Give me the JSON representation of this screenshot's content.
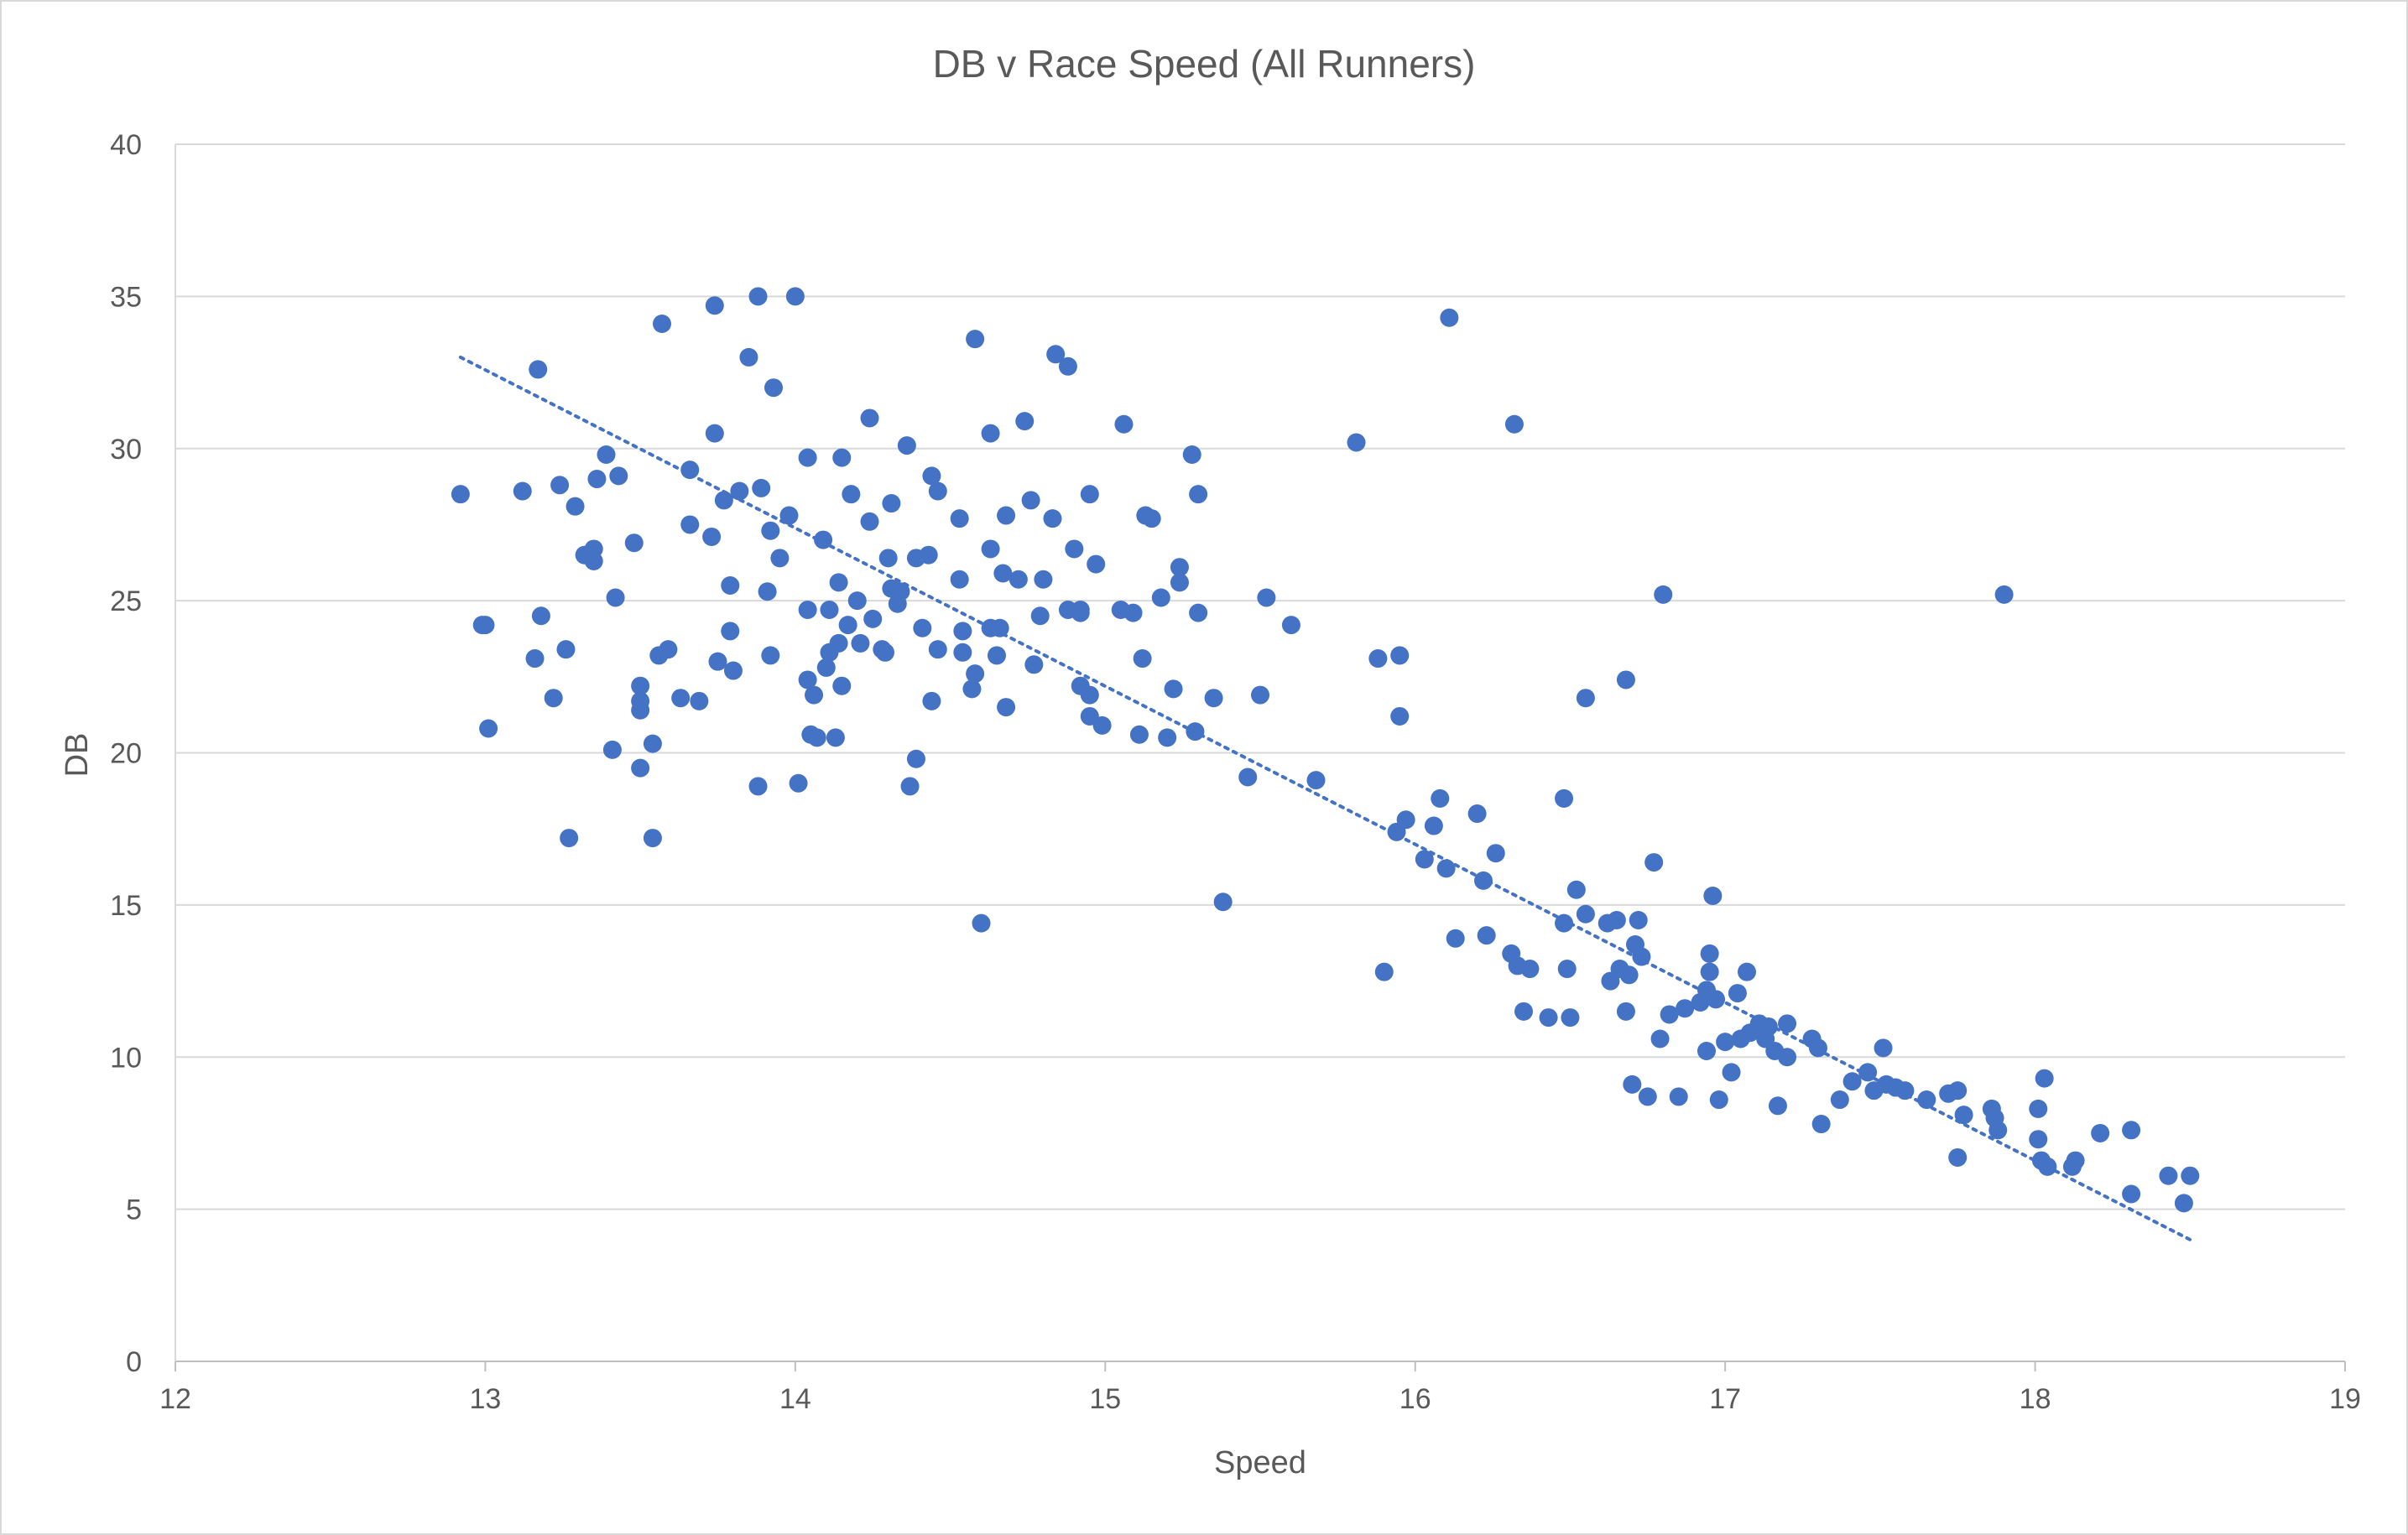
{
  "chart_data": {
    "type": "scatter",
    "title": "DB v Race Speed (All Runners)",
    "xlabel": "Speed",
    "ylabel": "DB",
    "xlim": [
      12,
      19
    ],
    "ylim": [
      0,
      40
    ],
    "x_ticks": [
      "12",
      "13",
      "14",
      "15",
      "16",
      "17",
      "18",
      "19"
    ],
    "y_ticks": [
      "0",
      "5",
      "10",
      "15",
      "20",
      "25",
      "30",
      "35",
      "40"
    ],
    "grid": "horizontal",
    "legend": "none",
    "marker_color": "#4472C4",
    "trendline": {
      "type": "linear",
      "style": "dotted",
      "color": "#4472C4",
      "x": [
        12.92,
        18.5
      ],
      "y": [
        33.0,
        4.0
      ]
    },
    "points": [
      [
        12.92,
        28.5
      ],
      [
        12.99,
        24.2
      ],
      [
        13.0,
        24.2
      ],
      [
        13.01,
        20.8
      ],
      [
        13.12,
        28.6
      ],
      [
        13.16,
        23.1
      ],
      [
        13.17,
        32.6
      ],
      [
        13.18,
        24.5
      ],
      [
        13.22,
        21.8
      ],
      [
        13.24,
        28.8
      ],
      [
        13.26,
        23.4
      ],
      [
        13.27,
        17.2
      ],
      [
        13.29,
        28.1
      ],
      [
        13.32,
        26.5
      ],
      [
        13.35,
        26.7
      ],
      [
        13.35,
        26.3
      ],
      [
        13.36,
        29.0
      ],
      [
        13.39,
        29.8
      ],
      [
        13.41,
        20.1
      ],
      [
        13.42,
        25.1
      ],
      [
        13.43,
        29.1
      ],
      [
        13.48,
        26.9
      ],
      [
        13.5,
        22.2
      ],
      [
        13.5,
        21.7
      ],
      [
        13.5,
        21.4
      ],
      [
        13.5,
        19.5
      ],
      [
        13.54,
        17.2
      ],
      [
        13.54,
        20.3
      ],
      [
        13.56,
        23.2
      ],
      [
        13.57,
        34.1
      ],
      [
        13.59,
        23.4
      ],
      [
        13.63,
        21.8
      ],
      [
        13.66,
        29.3
      ],
      [
        13.66,
        27.5
      ],
      [
        13.69,
        21.7
      ],
      [
        13.73,
        27.1
      ],
      [
        13.74,
        34.7
      ],
      [
        13.74,
        30.5
      ],
      [
        13.75,
        23.0
      ],
      [
        13.77,
        28.3
      ],
      [
        13.79,
        24.0
      ],
      [
        13.79,
        25.5
      ],
      [
        13.8,
        22.7
      ],
      [
        13.82,
        28.6
      ],
      [
        13.85,
        33.0
      ],
      [
        13.88,
        35.0
      ],
      [
        13.88,
        18.9
      ],
      [
        13.89,
        28.7
      ],
      [
        13.91,
        25.3
      ],
      [
        13.92,
        27.3
      ],
      [
        13.92,
        23.2
      ],
      [
        13.93,
        32.0
      ],
      [
        13.95,
        26.4
      ],
      [
        13.98,
        27.8
      ],
      [
        14.0,
        35.0
      ],
      [
        14.01,
        19.0
      ],
      [
        14.04,
        29.7
      ],
      [
        14.04,
        22.4
      ],
      [
        14.04,
        24.7
      ],
      [
        14.05,
        20.6
      ],
      [
        14.06,
        21.9
      ],
      [
        14.07,
        20.5
      ],
      [
        14.09,
        27.0
      ],
      [
        14.1,
        22.8
      ],
      [
        14.11,
        24.7
      ],
      [
        14.11,
        23.3
      ],
      [
        14.13,
        20.5
      ],
      [
        14.14,
        25.6
      ],
      [
        14.14,
        23.6
      ],
      [
        14.15,
        29.7
      ],
      [
        14.15,
        22.2
      ],
      [
        14.17,
        24.2
      ],
      [
        14.18,
        28.5
      ],
      [
        14.2,
        25.0
      ],
      [
        14.21,
        23.6
      ],
      [
        14.24,
        27.6
      ],
      [
        14.24,
        31.0
      ],
      [
        14.25,
        24.4
      ],
      [
        14.28,
        23.4
      ],
      [
        14.29,
        23.3
      ],
      [
        14.3,
        26.4
      ],
      [
        14.31,
        28.2
      ],
      [
        14.31,
        25.4
      ],
      [
        14.33,
        24.9
      ],
      [
        14.34,
        25.3
      ],
      [
        14.36,
        30.1
      ],
      [
        14.37,
        18.9
      ],
      [
        14.39,
        19.8
      ],
      [
        14.39,
        26.4
      ],
      [
        14.41,
        24.1
      ],
      [
        14.43,
        26.5
      ],
      [
        14.44,
        21.7
      ],
      [
        14.44,
        29.1
      ],
      [
        14.46,
        28.6
      ],
      [
        14.46,
        23.4
      ],
      [
        14.53,
        27.7
      ],
      [
        14.53,
        25.7
      ],
      [
        14.54,
        24.0
      ],
      [
        14.54,
        23.3
      ],
      [
        14.57,
        22.1
      ],
      [
        14.58,
        22.6
      ],
      [
        14.58,
        33.6
      ],
      [
        14.6,
        14.4
      ],
      [
        14.63,
        30.5
      ],
      [
        14.63,
        26.7
      ],
      [
        14.63,
        24.1
      ],
      [
        14.65,
        23.2
      ],
      [
        14.66,
        24.1
      ],
      [
        14.67,
        25.9
      ],
      [
        14.68,
        27.8
      ],
      [
        14.68,
        21.5
      ],
      [
        14.72,
        25.7
      ],
      [
        14.74,
        30.9
      ],
      [
        14.76,
        28.3
      ],
      [
        14.77,
        22.9
      ],
      [
        14.79,
        24.5
      ],
      [
        14.8,
        25.7
      ],
      [
        14.83,
        27.7
      ],
      [
        14.84,
        33.1
      ],
      [
        14.88,
        32.7
      ],
      [
        14.88,
        24.7
      ],
      [
        14.9,
        26.7
      ],
      [
        14.92,
        24.6
      ],
      [
        14.92,
        24.7
      ],
      [
        14.92,
        22.2
      ],
      [
        14.95,
        28.5
      ],
      [
        14.95,
        21.9
      ],
      [
        14.95,
        21.2
      ],
      [
        14.97,
        26.2
      ],
      [
        14.99,
        20.9
      ],
      [
        15.05,
        24.7
      ],
      [
        15.06,
        30.8
      ],
      [
        15.09,
        24.6
      ],
      [
        15.11,
        20.6
      ],
      [
        15.12,
        23.1
      ],
      [
        15.13,
        27.8
      ],
      [
        15.15,
        27.7
      ],
      [
        15.18,
        25.1
      ],
      [
        15.2,
        20.5
      ],
      [
        15.22,
        22.1
      ],
      [
        15.24,
        26.1
      ],
      [
        15.24,
        25.6
      ],
      [
        15.28,
        29.8
      ],
      [
        15.29,
        20.7
      ],
      [
        15.3,
        28.5
      ],
      [
        15.3,
        24.6
      ],
      [
        15.35,
        21.8
      ],
      [
        15.38,
        15.1
      ],
      [
        15.46,
        19.2
      ],
      [
        15.5,
        21.9
      ],
      [
        15.52,
        25.1
      ],
      [
        15.6,
        24.2
      ],
      [
        15.68,
        19.1
      ],
      [
        15.81,
        30.2
      ],
      [
        15.88,
        23.1
      ],
      [
        15.9,
        12.8
      ],
      [
        15.94,
        17.4
      ],
      [
        15.95,
        21.2
      ],
      [
        15.95,
        23.2
      ],
      [
        15.97,
        17.8
      ],
      [
        16.03,
        16.5
      ],
      [
        16.06,
        17.6
      ],
      [
        16.08,
        18.5
      ],
      [
        16.1,
        16.2
      ],
      [
        16.11,
        34.3
      ],
      [
        16.13,
        13.9
      ],
      [
        16.2,
        18.0
      ],
      [
        16.22,
        15.8
      ],
      [
        16.23,
        14.0
      ],
      [
        16.26,
        16.7
      ],
      [
        16.31,
        13.4
      ],
      [
        16.32,
        30.8
      ],
      [
        16.33,
        13.0
      ],
      [
        16.35,
        11.5
      ],
      [
        16.37,
        12.9
      ],
      [
        16.43,
        11.3
      ],
      [
        16.48,
        18.5
      ],
      [
        16.48,
        14.4
      ],
      [
        16.49,
        12.9
      ],
      [
        16.5,
        11.3
      ],
      [
        16.52,
        15.5
      ],
      [
        16.55,
        21.8
      ],
      [
        16.55,
        14.7
      ],
      [
        16.62,
        14.4
      ],
      [
        16.63,
        12.5
      ],
      [
        16.65,
        14.5
      ],
      [
        16.66,
        12.9
      ],
      [
        16.68,
        11.5
      ],
      [
        16.68,
        22.4
      ],
      [
        16.69,
        12.7
      ],
      [
        16.7,
        9.1
      ],
      [
        16.71,
        13.7
      ],
      [
        16.72,
        14.5
      ],
      [
        16.73,
        13.3
      ],
      [
        16.75,
        8.7
      ],
      [
        16.77,
        16.4
      ],
      [
        16.79,
        10.6
      ],
      [
        16.8,
        25.2
      ],
      [
        16.82,
        11.4
      ],
      [
        16.85,
        8.7
      ],
      [
        16.87,
        11.6
      ],
      [
        16.92,
        11.8
      ],
      [
        16.94,
        12.2
      ],
      [
        16.94,
        10.2
      ],
      [
        16.95,
        12.8
      ],
      [
        16.95,
        13.4
      ],
      [
        16.96,
        15.3
      ],
      [
        16.97,
        11.9
      ],
      [
        16.98,
        8.6
      ],
      [
        17.0,
        10.5
      ],
      [
        17.02,
        9.5
      ],
      [
        17.04,
        12.1
      ],
      [
        17.05,
        10.6
      ],
      [
        17.07,
        12.8
      ],
      [
        17.08,
        10.8
      ],
      [
        17.11,
        11.1
      ],
      [
        17.13,
        10.6
      ],
      [
        17.14,
        11.0
      ],
      [
        17.16,
        10.2
      ],
      [
        17.17,
        8.4
      ],
      [
        17.2,
        11.1
      ],
      [
        17.2,
        10.0
      ],
      [
        17.28,
        10.6
      ],
      [
        17.3,
        10.3
      ],
      [
        17.31,
        7.8
      ],
      [
        17.37,
        8.6
      ],
      [
        17.41,
        9.2
      ],
      [
        17.46,
        9.5
      ],
      [
        17.48,
        8.9
      ],
      [
        17.51,
        10.3
      ],
      [
        17.52,
        9.1
      ],
      [
        17.55,
        9.0
      ],
      [
        17.58,
        8.9
      ],
      [
        17.65,
        8.6
      ],
      [
        17.72,
        8.8
      ],
      [
        17.75,
        8.9
      ],
      [
        17.75,
        6.7
      ],
      [
        17.77,
        8.1
      ],
      [
        17.86,
        8.3
      ],
      [
        17.87,
        8.0
      ],
      [
        17.88,
        7.6
      ],
      [
        17.9,
        25.2
      ],
      [
        18.01,
        8.3
      ],
      [
        18.01,
        7.3
      ],
      [
        18.02,
        6.6
      ],
      [
        18.03,
        9.3
      ],
      [
        18.04,
        6.4
      ],
      [
        18.12,
        6.4
      ],
      [
        18.13,
        6.6
      ],
      [
        18.21,
        7.5
      ],
      [
        18.31,
        7.6
      ],
      [
        18.31,
        5.5
      ],
      [
        18.43,
        6.1
      ],
      [
        18.48,
        5.2
      ],
      [
        18.5,
        6.1
      ]
    ]
  }
}
